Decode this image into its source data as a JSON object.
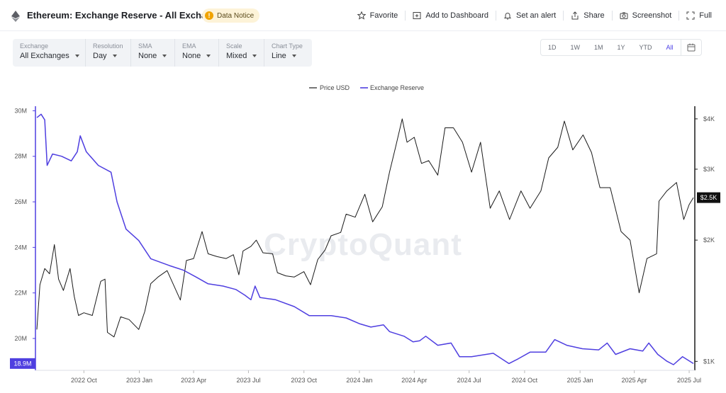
{
  "header": {
    "title": "Ethereum: Exchange Reserve - All Exchanges",
    "notice": "Data Notice",
    "actions": {
      "favorite": "Favorite",
      "dashboard": "Add to Dashboard",
      "alert": "Set an alert",
      "share": "Share",
      "screenshot": "Screenshot",
      "full": "Full"
    }
  },
  "filters": [
    {
      "label": "Exchange",
      "value": "All Exchanges"
    },
    {
      "label": "Resolution",
      "value": "Day"
    },
    {
      "label": "SMA",
      "value": "None"
    },
    {
      "label": "EMA",
      "value": "None"
    },
    {
      "label": "Scale",
      "value": "Mixed"
    },
    {
      "label": "Chart Type",
      "value": "Line"
    }
  ],
  "ranges": [
    "1D",
    "1W",
    "1M",
    "1Y",
    "YTD",
    "All"
  ],
  "active_range": "All",
  "watermark": "CryptoQuant",
  "colors": {
    "price": "#1a1a1a",
    "reserve": "#4f3fe0",
    "price_tag_bg": "#111111",
    "reserve_tag_bg": "#4f3fe0"
  },
  "chart_data": {
    "type": "line",
    "legend_placement": "top-center",
    "x_ticks": [
      "2022 Oct",
      "2023 Jan",
      "2023 Apr",
      "2023 Jul",
      "2023 Oct",
      "2024 Jan",
      "2024 Apr",
      "2024 Jul",
      "2024 Oct",
      "2025 Jan",
      "2025 Apr",
      "2025 Jul"
    ],
    "x_range": [
      "2022-07-15",
      "2025-07-08"
    ],
    "y_left": {
      "ticks": [
        "20M",
        "22M",
        "24M",
        "26M",
        "28M",
        "30M"
      ],
      "range": [
        18.6,
        30.2
      ],
      "unit": "M"
    },
    "y_right": {
      "ticks": [
        "$1K",
        "$2K",
        "$3K",
        "$4K"
      ],
      "range": [
        950,
        4300
      ]
    },
    "last_values": {
      "reserve_label": "18.9M",
      "price_label": "$2.5K"
    },
    "series": [
      {
        "name": "Price USD",
        "axis": "right",
        "points": [
          [
            "2022-07-15",
            1200
          ],
          [
            "2022-07-20",
            1550
          ],
          [
            "2022-07-28",
            1700
          ],
          [
            "2022-08-05",
            1650
          ],
          [
            "2022-08-13",
            1950
          ],
          [
            "2022-08-20",
            1600
          ],
          [
            "2022-08-28",
            1500
          ],
          [
            "2022-09-08",
            1700
          ],
          [
            "2022-09-15",
            1450
          ],
          [
            "2022-09-22",
            1300
          ],
          [
            "2022-10-01",
            1320
          ],
          [
            "2022-10-15",
            1300
          ],
          [
            "2022-10-29",
            1580
          ],
          [
            "2022-11-05",
            1600
          ],
          [
            "2022-11-09",
            1180
          ],
          [
            "2022-11-20",
            1150
          ],
          [
            "2022-12-01",
            1290
          ],
          [
            "2022-12-15",
            1270
          ],
          [
            "2022-12-31",
            1200
          ],
          [
            "2023-01-10",
            1330
          ],
          [
            "2023-01-20",
            1560
          ],
          [
            "2023-02-01",
            1620
          ],
          [
            "2023-02-16",
            1680
          ],
          [
            "2023-03-10",
            1420
          ],
          [
            "2023-03-20",
            1780
          ],
          [
            "2023-04-01",
            1800
          ],
          [
            "2023-04-15",
            2100
          ],
          [
            "2023-04-25",
            1850
          ],
          [
            "2023-05-10",
            1820
          ],
          [
            "2023-05-25",
            1800
          ],
          [
            "2023-06-06",
            1840
          ],
          [
            "2023-06-15",
            1640
          ],
          [
            "2023-06-22",
            1880
          ],
          [
            "2023-07-05",
            1930
          ],
          [
            "2023-07-14",
            2000
          ],
          [
            "2023-07-25",
            1860
          ],
          [
            "2023-08-10",
            1850
          ],
          [
            "2023-08-18",
            1660
          ],
          [
            "2023-09-01",
            1630
          ],
          [
            "2023-09-15",
            1620
          ],
          [
            "2023-10-01",
            1670
          ],
          [
            "2023-10-12",
            1550
          ],
          [
            "2023-10-24",
            1790
          ],
          [
            "2023-11-05",
            1890
          ],
          [
            "2023-11-15",
            2050
          ],
          [
            "2023-12-01",
            2090
          ],
          [
            "2023-12-10",
            2320
          ],
          [
            "2023-12-25",
            2280
          ],
          [
            "2024-01-10",
            2600
          ],
          [
            "2024-01-23",
            2220
          ],
          [
            "2024-02-08",
            2420
          ],
          [
            "2024-02-20",
            2950
          ],
          [
            "2024-03-01",
            3400
          ],
          [
            "2024-03-12",
            4000
          ],
          [
            "2024-03-20",
            3500
          ],
          [
            "2024-04-01",
            3600
          ],
          [
            "2024-04-13",
            3100
          ],
          [
            "2024-04-25",
            3150
          ],
          [
            "2024-05-10",
            2900
          ],
          [
            "2024-05-22",
            3800
          ],
          [
            "2024-06-05",
            3800
          ],
          [
            "2024-06-20",
            3500
          ],
          [
            "2024-07-05",
            2950
          ],
          [
            "2024-07-20",
            3500
          ],
          [
            "2024-08-05",
            2400
          ],
          [
            "2024-08-20",
            2650
          ],
          [
            "2024-09-06",
            2250
          ],
          [
            "2024-09-25",
            2650
          ],
          [
            "2024-10-10",
            2400
          ],
          [
            "2024-10-28",
            2650
          ],
          [
            "2024-11-10",
            3200
          ],
          [
            "2024-11-25",
            3400
          ],
          [
            "2024-12-06",
            3950
          ],
          [
            "2024-12-20",
            3350
          ],
          [
            "2025-01-06",
            3650
          ],
          [
            "2025-01-20",
            3300
          ],
          [
            "2025-02-03",
            2700
          ],
          [
            "2025-02-20",
            2700
          ],
          [
            "2025-03-10",
            2100
          ],
          [
            "2025-03-25",
            2000
          ],
          [
            "2025-04-09",
            1480
          ],
          [
            "2025-04-22",
            1800
          ],
          [
            "2025-05-08",
            1850
          ],
          [
            "2025-05-12",
            2500
          ],
          [
            "2025-05-25",
            2650
          ],
          [
            "2025-06-10",
            2780
          ],
          [
            "2025-06-22",
            2250
          ],
          [
            "2025-07-01",
            2450
          ],
          [
            "2025-07-08",
            2550
          ]
        ]
      },
      {
        "name": "Exchange Reserve",
        "axis": "left",
        "points": [
          [
            "2022-07-15",
            29.7
          ],
          [
            "2022-07-22",
            29.85
          ],
          [
            "2022-07-28",
            29.6
          ],
          [
            "2022-08-01",
            27.6
          ],
          [
            "2022-08-10",
            28.1
          ],
          [
            "2022-08-25",
            28.0
          ],
          [
            "2022-09-10",
            27.8
          ],
          [
            "2022-09-20",
            28.2
          ],
          [
            "2022-09-25",
            28.9
          ],
          [
            "2022-10-05",
            28.2
          ],
          [
            "2022-10-25",
            27.6
          ],
          [
            "2022-11-15",
            27.3
          ],
          [
            "2022-11-25",
            26.0
          ],
          [
            "2022-12-10",
            24.8
          ],
          [
            "2022-12-31",
            24.3
          ],
          [
            "2023-01-20",
            23.5
          ],
          [
            "2023-02-20",
            23.2
          ],
          [
            "2023-03-15",
            23.0
          ],
          [
            "2023-04-05",
            22.7
          ],
          [
            "2023-04-25",
            22.4
          ],
          [
            "2023-05-20",
            22.3
          ],
          [
            "2023-06-10",
            22.15
          ],
          [
            "2023-06-25",
            21.9
          ],
          [
            "2023-07-05",
            21.7
          ],
          [
            "2023-07-12",
            22.3
          ],
          [
            "2023-07-20",
            21.8
          ],
          [
            "2023-08-15",
            21.7
          ],
          [
            "2023-09-15",
            21.4
          ],
          [
            "2023-10-10",
            21.0
          ],
          [
            "2023-11-15",
            21.0
          ],
          [
            "2023-12-10",
            20.9
          ],
          [
            "2024-01-01",
            20.65
          ],
          [
            "2024-01-20",
            20.5
          ],
          [
            "2024-02-10",
            20.6
          ],
          [
            "2024-02-20",
            20.3
          ],
          [
            "2024-03-15",
            20.1
          ],
          [
            "2024-03-30",
            19.85
          ],
          [
            "2024-04-10",
            19.9
          ],
          [
            "2024-04-20",
            20.1
          ],
          [
            "2024-05-10",
            19.7
          ],
          [
            "2024-06-01",
            19.8
          ],
          [
            "2024-06-15",
            19.2
          ],
          [
            "2024-07-05",
            19.2
          ],
          [
            "2024-08-10",
            19.35
          ],
          [
            "2024-09-05",
            18.9
          ],
          [
            "2024-09-20",
            19.1
          ],
          [
            "2024-10-10",
            19.4
          ],
          [
            "2024-11-05",
            19.4
          ],
          [
            "2024-11-20",
            19.95
          ],
          [
            "2024-12-10",
            19.7
          ],
          [
            "2025-01-05",
            19.55
          ],
          [
            "2025-02-01",
            19.5
          ],
          [
            "2025-02-15",
            19.8
          ],
          [
            "2025-03-01",
            19.3
          ],
          [
            "2025-03-25",
            19.55
          ],
          [
            "2025-04-15",
            19.45
          ],
          [
            "2025-04-25",
            19.8
          ],
          [
            "2025-05-10",
            19.3
          ],
          [
            "2025-05-25",
            19.0
          ],
          [
            "2025-06-05",
            18.85
          ],
          [
            "2025-06-20",
            19.2
          ],
          [
            "2025-07-08",
            18.9
          ]
        ]
      }
    ]
  }
}
